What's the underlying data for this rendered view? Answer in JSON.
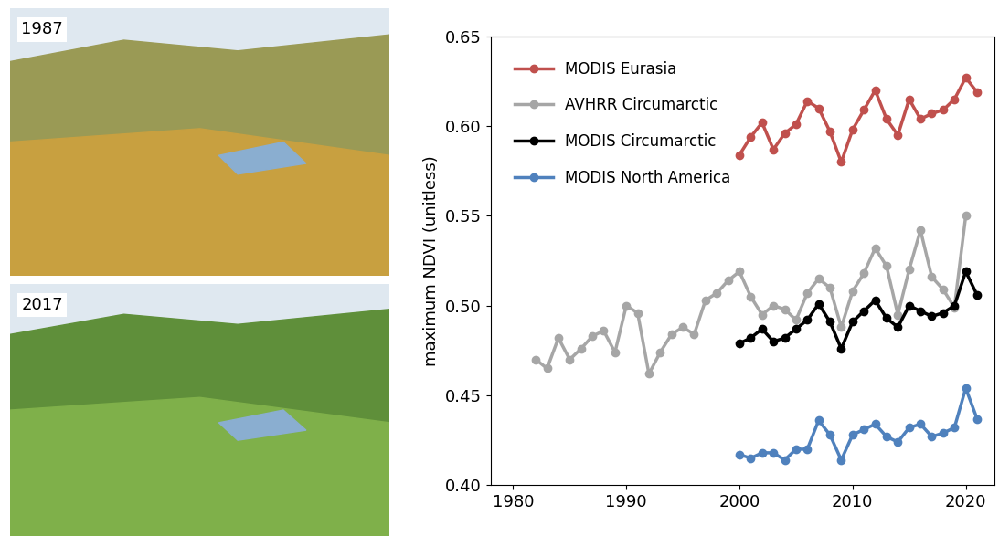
{
  "chart_data": {
    "type": "line",
    "y_label": "maximum NDVI (unitless)",
    "xlim": [
      1978,
      2022.5
    ],
    "xticks": [
      1980,
      1990,
      2000,
      2010,
      2020
    ],
    "ylim": [
      0.4,
      0.65
    ],
    "yticks": [
      {
        "value": 0.4,
        "label": "0.40"
      },
      {
        "value": 0.45,
        "label": "0.45"
      },
      {
        "value": 0.5,
        "label": "0.50"
      },
      {
        "value": 0.55,
        "label": "0.55"
      },
      {
        "value": 0.6,
        "label": "0.60"
      },
      {
        "value": 0.65,
        "label": "0.65"
      }
    ],
    "grid": false,
    "legend": "upper left",
    "marker": "o",
    "line_style": "solid",
    "series": [
      {
        "name": "MODIS Eurasia",
        "color": "#c0504d",
        "x": [
          2000,
          2001,
          2002,
          2003,
          2004,
          2005,
          2006,
          2007,
          2008,
          2009,
          2010,
          2011,
          2012,
          2013,
          2014,
          2015,
          2016,
          2017,
          2018,
          2019,
          2020,
          2021
        ],
        "values": [
          0.584,
          0.594,
          0.602,
          0.587,
          0.596,
          0.601,
          0.614,
          0.61,
          0.597,
          0.58,
          0.598,
          0.609,
          0.62,
          0.604,
          0.595,
          0.615,
          0.604,
          0.607,
          0.609,
          0.615,
          0.627,
          0.619
        ]
      },
      {
        "name": "AVHRR Circumarctic",
        "color": "#a6a6a6",
        "x": [
          1982,
          1983,
          1984,
          1985,
          1986,
          1987,
          1988,
          1989,
          1990,
          1991,
          1992,
          1993,
          1994,
          1995,
          1996,
          1997,
          1998,
          1999,
          2000,
          2001,
          2002,
          2003,
          2004,
          2005,
          2006,
          2007,
          2008,
          2009,
          2010,
          2011,
          2012,
          2013,
          2014,
          2015,
          2016,
          2017,
          2018,
          2019,
          2020
        ],
        "values": [
          0.47,
          0.465,
          0.482,
          0.47,
          0.476,
          0.483,
          0.486,
          0.474,
          0.5,
          0.496,
          0.462,
          0.474,
          0.484,
          0.488,
          0.484,
          0.503,
          0.507,
          0.514,
          0.519,
          0.505,
          0.495,
          0.5,
          0.498,
          0.492,
          0.507,
          0.515,
          0.51,
          0.488,
          0.508,
          0.518,
          0.532,
          0.522,
          0.495,
          0.52,
          0.542,
          0.516,
          0.509,
          0.499,
          0.55
        ]
      },
      {
        "name": "MODIS Circumarctic",
        "color": "#000000",
        "x": [
          2000,
          2001,
          2002,
          2003,
          2004,
          2005,
          2006,
          2007,
          2008,
          2009,
          2010,
          2011,
          2012,
          2013,
          2014,
          2015,
          2016,
          2017,
          2018,
          2019,
          2020,
          2021
        ],
        "values": [
          0.479,
          0.482,
          0.487,
          0.48,
          0.482,
          0.487,
          0.492,
          0.501,
          0.491,
          0.476,
          0.491,
          0.497,
          0.503,
          0.493,
          0.488,
          0.5,
          0.497,
          0.494,
          0.496,
          0.5,
          0.519,
          0.506
        ]
      },
      {
        "name": "MODIS North America",
        "color": "#4f81bd",
        "x": [
          2000,
          2001,
          2002,
          2003,
          2004,
          2005,
          2006,
          2007,
          2008,
          2009,
          2010,
          2011,
          2012,
          2013,
          2014,
          2015,
          2016,
          2017,
          2018,
          2019,
          2020,
          2021
        ],
        "values": [
          0.417,
          0.415,
          0.418,
          0.418,
          0.414,
          0.42,
          0.42,
          0.436,
          0.428,
          0.414,
          0.428,
          0.431,
          0.434,
          0.427,
          0.424,
          0.432,
          0.434,
          0.427,
          0.429,
          0.432,
          0.454,
          0.437
        ]
      }
    ]
  },
  "photos": [
    {
      "label": "1987"
    },
    {
      "label": "2017"
    }
  ]
}
